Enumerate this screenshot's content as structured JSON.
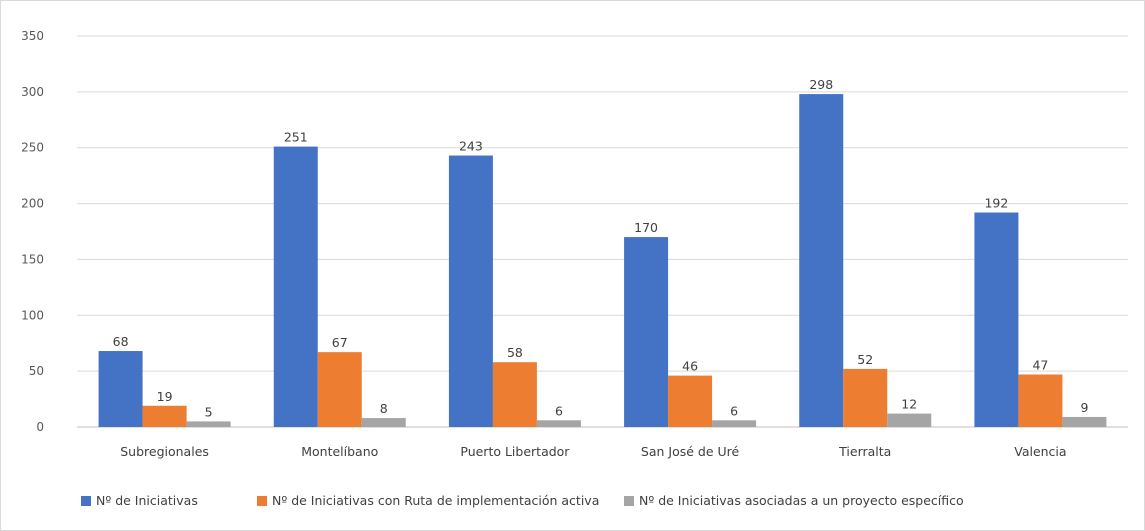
{
  "chart_data": {
    "type": "bar",
    "title": "",
    "xlabel": "",
    "ylabel": "",
    "ylim": [
      0,
      350
    ],
    "yticks": [
      0,
      50,
      100,
      150,
      200,
      250,
      300,
      350
    ],
    "grid": true,
    "legend_position": "bottom",
    "categories": [
      "Subregionales",
      "Montelíbano",
      "Puerto Libertador",
      "San José de Uré",
      "Tierralta",
      "Valencia"
    ],
    "series": [
      {
        "name": "Nº de Iniciativas",
        "color": "#4472c4",
        "values": [
          68,
          251,
          243,
          170,
          298,
          192
        ]
      },
      {
        "name": "Nº de Iniciativas con Ruta de implementación activa",
        "color": "#ed7d31",
        "values": [
          19,
          67,
          58,
          46,
          52,
          47
        ]
      },
      {
        "name": "Nº de Iniciativas asociadas a un proyecto específico",
        "color": "#a5a5a5",
        "values": [
          5,
          8,
          6,
          6,
          12,
          9
        ]
      }
    ]
  }
}
